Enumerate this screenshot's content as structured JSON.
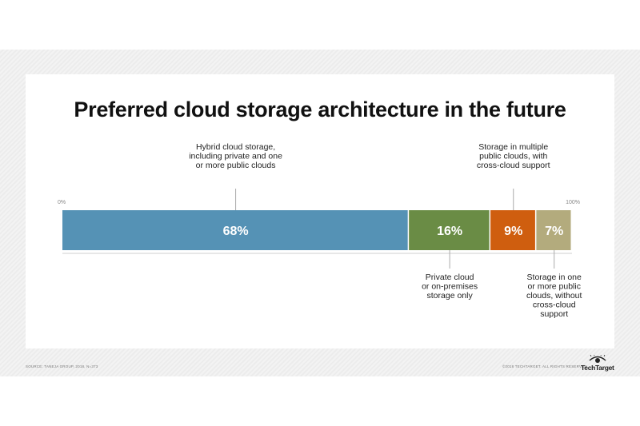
{
  "header": {
    "title": "Preferred cloud storage architecture in the future"
  },
  "chart_data": {
    "type": "bar",
    "orientation": "horizontal-stacked",
    "title": "Preferred cloud storage architecture in the future",
    "axis": {
      "min_label": "0%",
      "max_label": "100%",
      "range": [
        0,
        100
      ]
    },
    "series": [
      {
        "category": "Hybrid cloud storage, including private and one or more public clouds",
        "label_lines": [
          "Hybrid cloud storage,",
          "including private and one",
          "or more public clouds"
        ],
        "value": 68,
        "value_label": "68%",
        "color": "#5592b5",
        "label_position": "above"
      },
      {
        "category": "Private cloud or on-premises storage only",
        "label_lines": [
          "Private cloud",
          "or on-premises",
          "storage only"
        ],
        "value": 16,
        "value_label": "16%",
        "color": "#6a8c45",
        "label_position": "below"
      },
      {
        "category": "Storage in multiple public clouds, with cross-cloud support",
        "label_lines": [
          "Storage in multiple",
          "public clouds, with",
          "cross-cloud support"
        ],
        "value": 9,
        "value_label": "9%",
        "color": "#cf5e0f",
        "label_position": "above"
      },
      {
        "category": "Storage in one or more public clouds, without cross-cloud support",
        "label_lines": [
          "Storage in one",
          "or more public",
          "clouds, without",
          "cross-cloud",
          "support"
        ],
        "value": 7,
        "value_label": "7%",
        "color": "#b3ab7d",
        "label_position": "below"
      }
    ]
  },
  "footer": {
    "source": "SOURCE: TANEJA GROUP, 2018, N=373",
    "copyright": "©2018 TECHTARGET. ALL RIGHTS RESERVED",
    "brand": "TechTarget"
  }
}
